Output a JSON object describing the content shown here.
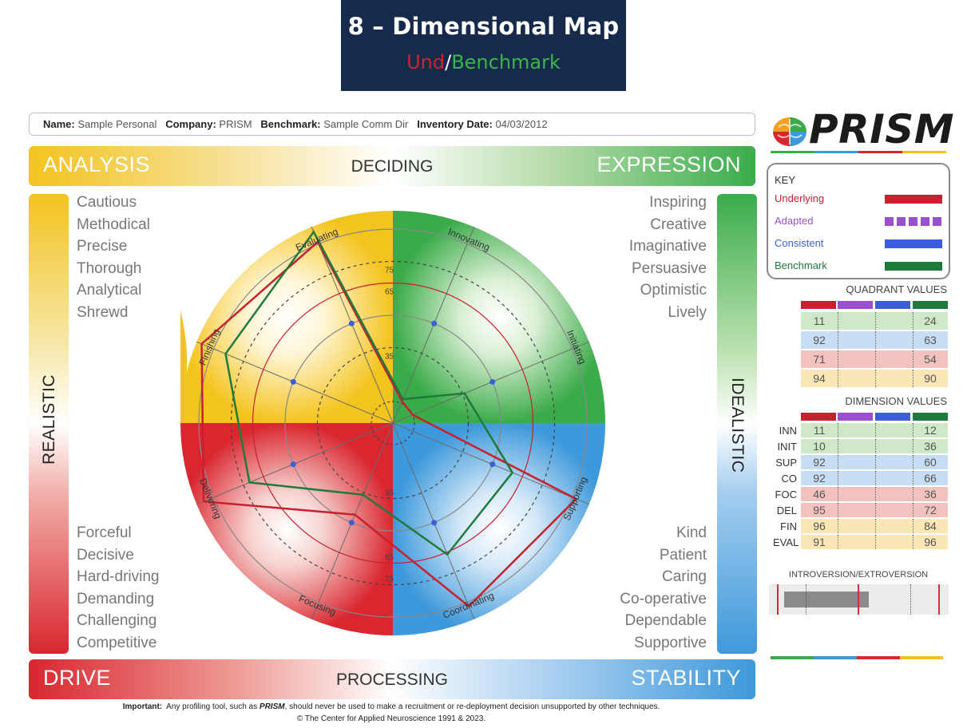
{
  "title": {
    "main": "8 – Dimensional Map",
    "sub_und": "Und",
    "sub_sep": "/",
    "sub_bench": "Benchmark",
    "und_color": "#d02233",
    "bench_color": "#3ab54a"
  },
  "info": {
    "name_label": "Name:",
    "name_value": "Sample Personal",
    "company_label": "Company:",
    "company_value": "PRISM",
    "benchmark_label": "Benchmark:",
    "benchmark_value": "Sample Comm Dir",
    "date_label": "Inventory Date:",
    "date_value": "04/03/2012"
  },
  "bands": {
    "top_left": "ANALYSIS",
    "top_mid": "DECIDING",
    "top_right": "EXPRESSION",
    "bottom_left": "DRIVE",
    "bottom_mid": "PROCESSING",
    "bottom_right": "STABILITY",
    "left": "REALISTIC",
    "right": "IDEALISTIC"
  },
  "traits": {
    "top_left": [
      "Cautious",
      "Methodical",
      "Precise",
      "Thorough",
      "Analytical",
      "Shrewd"
    ],
    "top_right": [
      "Inspiring",
      "Creative",
      "Imaginative",
      "Persuasive",
      "Optimistic",
      "Lively"
    ],
    "bottom_left": [
      "Forceful",
      "Decisive",
      "Hard-driving",
      "Demanding",
      "Challenging",
      "Competitive"
    ],
    "bottom_right": [
      "Kind",
      "Patient",
      "Caring",
      "Co-operative",
      "Dependable",
      "Supportive"
    ]
  },
  "logo": {
    "text": "PRISM"
  },
  "key": {
    "title": "KEY",
    "items": [
      {
        "label": "Underlying",
        "color": "#c8202e",
        "style": "solid"
      },
      {
        "label": "Adapted",
        "color": "#9b4fd0",
        "style": "dashed"
      },
      {
        "label": "Consistent",
        "color": "#3b5fd6",
        "style": "solid"
      },
      {
        "label": "Benchmark",
        "color": "#1f7a3c",
        "style": "solid"
      }
    ]
  },
  "quadrant_values": {
    "title": "QUADRANT VALUES",
    "rows": [
      {
        "underlying": "11",
        "benchmark": "24",
        "bg": "#cfe8c8"
      },
      {
        "underlying": "92",
        "benchmark": "63",
        "bg": "#c6ddf3"
      },
      {
        "underlying": "71",
        "benchmark": "54",
        "bg": "#f2c2bf"
      },
      {
        "underlying": "94",
        "benchmark": "90",
        "bg": "#fbe6b5"
      }
    ]
  },
  "dimension_values": {
    "title": "DIMENSION VALUES",
    "rows": [
      {
        "label": "INN",
        "underlying": "11",
        "benchmark": "12",
        "bg": "#cfe8c8"
      },
      {
        "label": "INIT",
        "underlying": "10",
        "benchmark": "36",
        "bg": "#cfe8c8"
      },
      {
        "label": "SUP",
        "underlying": "92",
        "benchmark": "60",
        "bg": "#c6ddf3"
      },
      {
        "label": "CO",
        "underlying": "92",
        "benchmark": "66",
        "bg": "#c6ddf3"
      },
      {
        "label": "FOC",
        "underlying": "46",
        "benchmark": "36",
        "bg": "#f2c2bf"
      },
      {
        "label": "DEL",
        "underlying": "95",
        "benchmark": "72",
        "bg": "#f2c2bf"
      },
      {
        "label": "FIN",
        "underlying": "96",
        "benchmark": "84",
        "bg": "#fbe6b5"
      },
      {
        "label": "EVAL",
        "underlying": "91",
        "benchmark": "96",
        "bg": "#fbe6b5"
      }
    ]
  },
  "introversion": {
    "title": "INTROVERSION/EXTROVERSION",
    "bar_start": 0.03,
    "bar_end": 0.5
  },
  "radar": {
    "axes": [
      "Evaluating",
      "Innovating",
      "Initiating",
      "Supporting",
      "Coordinating",
      "Focusing",
      "Delivering",
      "Finishing"
    ],
    "ring_labels": [
      "35",
      "65",
      "75"
    ],
    "underlying": [
      91,
      11,
      10,
      92,
      92,
      46,
      95,
      96
    ],
    "benchmark": [
      96,
      12,
      36,
      60,
      66,
      36,
      72,
      84
    ],
    "consistent_dots": 50
  },
  "footer": {
    "line1_prefix": "Important:",
    "line1_a": "Any profiling tool, such as",
    "line1_brand": "PRISM",
    "line1_b": ", should never be used to make a recruitment or re-deployment decision unsupported by other techniques.",
    "line2": "© The Center for Applied Neuroscience 1991 & 2023."
  }
}
